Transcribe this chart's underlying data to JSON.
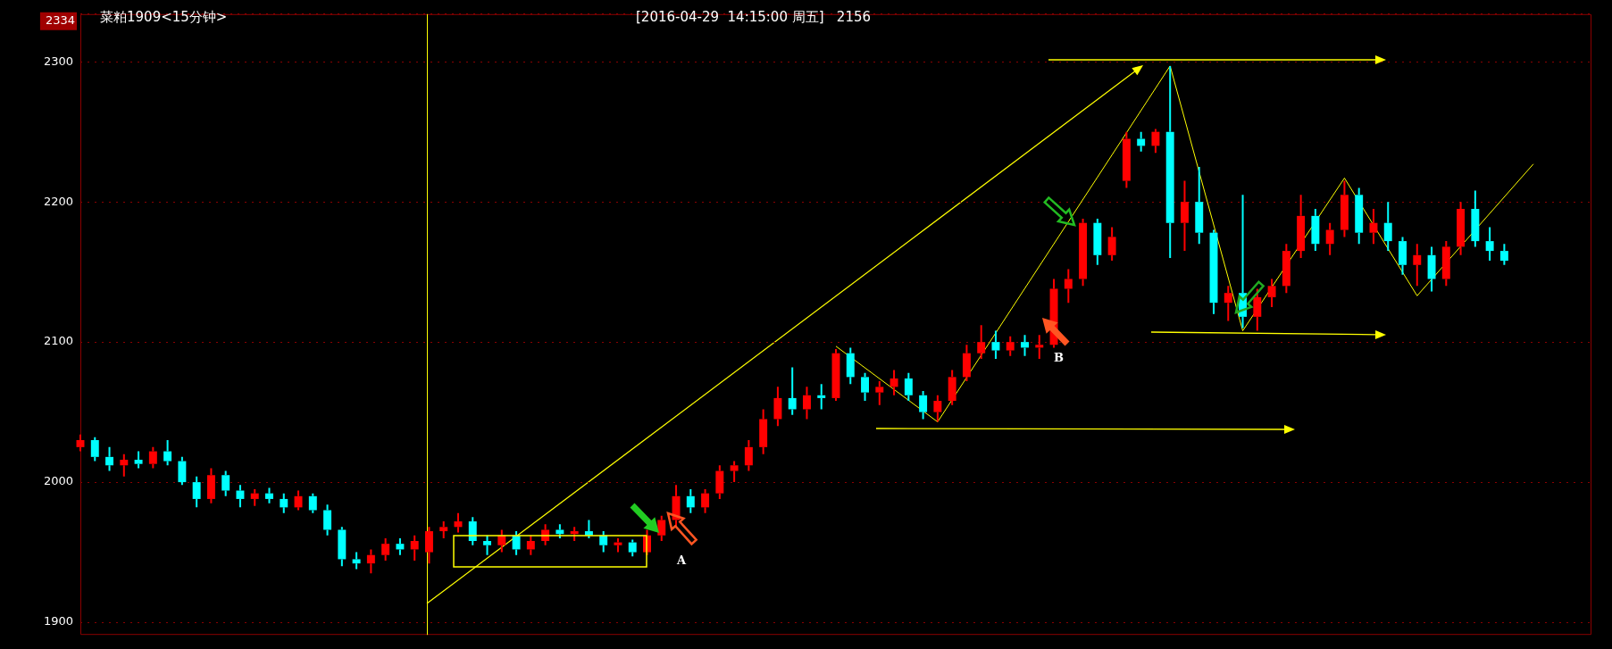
{
  "chart_data": {
    "type": "candlestick",
    "title": "菜粕1909<15分钟>",
    "subtitle": "[2016-04-29  14:15:00 周五]   2156",
    "annotations": [
      "A",
      "B"
    ],
    "categories": [
      null,
      null,
      null,
      null,
      null,
      null,
      null,
      null,
      null,
      null,
      null,
      null,
      null,
      null,
      null,
      null,
      null,
      null,
      null,
      null,
      null,
      null,
      null,
      null,
      null,
      null,
      null,
      null,
      null,
      null,
      null,
      null,
      null,
      null,
      null,
      null,
      null,
      null,
      null,
      null,
      null,
      null,
      null,
      null,
      null,
      null,
      null,
      null,
      null,
      null,
      null,
      null,
      null,
      null,
      null,
      null,
      null,
      null,
      null,
      null,
      null,
      null,
      null,
      null,
      null,
      null,
      null,
      null,
      null,
      null,
      null,
      null,
      null,
      null,
      null,
      null,
      null,
      null,
      null,
      null,
      null,
      null,
      null,
      null,
      null,
      null,
      null,
      null,
      null,
      null,
      null,
      null,
      null,
      null,
      null,
      null,
      null,
      null,
      null,
      null,
      null,
      null,
      null,
      null,
      null
    ],
    "ohlc": [
      [
        2025,
        2034,
        2022,
        2030
      ],
      [
        2030,
        2032,
        2015,
        2018
      ],
      [
        2018,
        2025,
        2008,
        2012
      ],
      [
        2012,
        2020,
        2004,
        2016
      ],
      [
        2016,
        2022,
        2010,
        2013
      ],
      [
        2013,
        2025,
        2010,
        2022
      ],
      [
        2022,
        2030,
        2012,
        2015
      ],
      [
        2015,
        2018,
        1998,
        2000
      ],
      [
        2000,
        2004,
        1982,
        1988
      ],
      [
        1988,
        2010,
        1985,
        2005
      ],
      [
        2005,
        2008,
        1990,
        1994
      ],
      [
        1994,
        1998,
        1982,
        1988
      ],
      [
        1988,
        1995,
        1983,
        1992
      ],
      [
        1992,
        1996,
        1985,
        1988
      ],
      [
        1988,
        1992,
        1978,
        1982
      ],
      [
        1982,
        1994,
        1980,
        1990
      ],
      [
        1990,
        1992,
        1978,
        1980
      ],
      [
        1980,
        1984,
        1962,
        1966
      ],
      [
        1966,
        1968,
        1940,
        1945
      ],
      [
        1945,
        1950,
        1938,
        1942
      ],
      [
        1942,
        1952,
        1935,
        1948
      ],
      [
        1948,
        1960,
        1944,
        1956
      ],
      [
        1956,
        1960,
        1948,
        1952
      ],
      [
        1952,
        1962,
        1944,
        1958
      ],
      [
        1950,
        1968,
        1942,
        1965
      ],
      [
        1965,
        1972,
        1960,
        1968
      ],
      [
        1968,
        1978,
        1964,
        1972
      ],
      [
        1972,
        1975,
        1955,
        1958
      ],
      [
        1958,
        1962,
        1948,
        1955
      ],
      [
        1955,
        1966,
        1950,
        1962
      ],
      [
        1962,
        1965,
        1948,
        1952
      ],
      [
        1952,
        1962,
        1948,
        1958
      ],
      [
        1958,
        1970,
        1955,
        1966
      ],
      [
        1966,
        1970,
        1960,
        1963
      ],
      [
        1963,
        1968,
        1958,
        1965
      ],
      [
        1965,
        1973,
        1960,
        1962
      ],
      [
        1962,
        1965,
        1950,
        1955
      ],
      [
        1955,
        1960,
        1950,
        1957
      ],
      [
        1957,
        1959,
        1947,
        1950
      ],
      [
        1950,
        1966,
        1948,
        1962
      ],
      [
        1962,
        1976,
        1958,
        1973
      ],
      [
        1973,
        1998,
        1968,
        1990
      ],
      [
        1990,
        1995,
        1978,
        1982
      ],
      [
        1982,
        1995,
        1978,
        1992
      ],
      [
        1992,
        2012,
        1988,
        2008
      ],
      [
        2008,
        2015,
        2000,
        2012
      ],
      [
        2012,
        2030,
        2008,
        2025
      ],
      [
        2025,
        2052,
        2020,
        2045
      ],
      [
        2045,
        2068,
        2040,
        2060
      ],
      [
        2060,
        2082,
        2048,
        2052
      ],
      [
        2052,
        2068,
        2045,
        2062
      ],
      [
        2062,
        2070,
        2052,
        2060
      ],
      [
        2060,
        2095,
        2058,
        2092
      ],
      [
        2092,
        2096,
        2070,
        2075
      ],
      [
        2075,
        2078,
        2058,
        2064
      ],
      [
        2064,
        2072,
        2055,
        2068
      ],
      [
        2068,
        2080,
        2062,
        2074
      ],
      [
        2074,
        2078,
        2058,
        2062
      ],
      [
        2062,
        2065,
        2045,
        2050
      ],
      [
        2050,
        2062,
        2043,
        2058
      ],
      [
        2058,
        2080,
        2055,
        2075
      ],
      [
        2075,
        2098,
        2072,
        2092
      ],
      [
        2092,
        2112,
        2088,
        2100
      ],
      [
        2100,
        2108,
        2088,
        2094
      ],
      [
        2094,
        2104,
        2090,
        2100
      ],
      [
        2100,
        2105,
        2090,
        2096
      ],
      [
        2096,
        2105,
        2088,
        2098
      ],
      [
        2098,
        2145,
        2096,
        2138
      ],
      [
        2138,
        2152,
        2128,
        2145
      ],
      [
        2145,
        2188,
        2140,
        2185
      ],
      [
        2185,
        2188,
        2155,
        2162
      ],
      [
        2162,
        2182,
        2158,
        2175
      ],
      [
        2215,
        2250,
        2210,
        2245
      ],
      [
        2245,
        2250,
        2236,
        2240
      ],
      [
        2240,
        2252,
        2235,
        2250
      ],
      [
        2250,
        2297,
        2160,
        2185
      ],
      [
        2185,
        2215,
        2165,
        2200
      ],
      [
        2200,
        2225,
        2170,
        2178
      ],
      [
        2178,
        2180,
        2120,
        2128
      ],
      [
        2128,
        2140,
        2115,
        2135
      ],
      [
        2135,
        2205,
        2110,
        2118
      ],
      [
        2118,
        2138,
        2108,
        2132
      ],
      [
        2132,
        2145,
        2125,
        2140
      ],
      [
        2140,
        2170,
        2135,
        2165
      ],
      [
        2165,
        2205,
        2160,
        2190
      ],
      [
        2190,
        2195,
        2165,
        2170
      ],
      [
        2170,
        2185,
        2162,
        2180
      ],
      [
        2180,
        2215,
        2175,
        2205
      ],
      [
        2205,
        2210,
        2170,
        2178
      ],
      [
        2178,
        2195,
        2170,
        2185
      ],
      [
        2185,
        2200,
        2165,
        2172
      ],
      [
        2172,
        2175,
        2148,
        2155
      ],
      [
        2155,
        2170,
        2140,
        2162
      ],
      [
        2162,
        2168,
        2136,
        2145
      ],
      [
        2145,
        2172,
        2140,
        2168
      ],
      [
        2168,
        2200,
        2162,
        2195
      ],
      [
        2195,
        2208,
        2168,
        2172
      ],
      [
        2172,
        2182,
        2158,
        2165
      ],
      [
        2165,
        2170,
        2155,
        2158
      ],
      null,
      null,
      null,
      null,
      null,
      null
    ],
    "colors": [
      "#ff0000",
      "#00ffff",
      "#00ffff",
      "#ff0000",
      "#00ffff",
      "#ff0000",
      "#00ffff",
      "#00ffff",
      "#00ffff",
      "#ff0000",
      "#00ffff",
      "#00ffff",
      "#ff0000",
      "#00ffff",
      "#00ffff",
      "#ff0000",
      "#00ffff",
      "#00ffff",
      "#00ffff",
      "#00ffff",
      "#ff0000",
      "#ff0000",
      "#00ffff",
      "#ff0000",
      "#ff0000",
      "#ff0000",
      "#ff0000",
      "#00ffff",
      "#00ffff",
      "#ff0000",
      "#00ffff",
      "#ff0000",
      "#ff0000",
      "#00ffff",
      "#ff0000",
      "#00ffff",
      "#00ffff",
      "#ff0000",
      "#00ffff",
      "#ff0000",
      "#ff0000",
      "#ff0000",
      "#00ffff",
      "#ff0000",
      "#ff0000",
      "#ff0000",
      "#ff0000",
      "#ff0000",
      "#ff0000",
      "#00ffff",
      "#ff0000",
      "#00ffff",
      "#ff0000",
      "#00ffff",
      "#00ffff",
      "#ff0000",
      "#ff0000",
      "#00ffff",
      "#00ffff",
      "#ff0000",
      "#ff0000",
      "#ff0000",
      "#ff0000",
      "#00ffff",
      "#ff0000",
      "#00ffff",
      "#ff0000",
      "#ff0000",
      "#ff0000",
      "#ff0000",
      "#00ffff",
      "#ff0000",
      "#ff0000",
      "#00ffff",
      "#ff0000",
      "#00ffff",
      "#ff0000",
      "#00ffff",
      "#00ffff",
      "#ff0000",
      "#00ffff",
      "#ff0000",
      "#ff0000",
      "#ff0000",
      "#ff0000",
      "#00ffff",
      "#ff0000",
      "#ff0000",
      "#00ffff",
      "#ff0000",
      "#00ffff",
      "#00ffff",
      "#ff0000",
      "#00ffff",
      "#ff0000",
      "#ff0000",
      "#00ffff",
      "#00ffff",
      "#00ffff",
      null,
      null,
      null,
      null,
      null,
      null
    ],
    "series": [
      {
        "type": "line",
        "color": "#ffff00",
        "values": [
          null,
          null,
          null,
          null,
          null,
          null,
          null,
          null,
          null,
          null,
          null,
          null,
          null,
          null,
          null,
          null,
          null,
          null,
          null,
          null,
          null,
          null,
          null,
          null,
          null,
          null,
          null,
          null,
          null,
          null,
          null,
          null,
          null,
          null,
          null,
          null,
          null,
          null,
          null,
          null,
          null,
          null,
          null,
          null,
          null,
          null,
          null,
          null,
          null,
          null,
          null,
          null,
          2097,
          null,
          null,
          null,
          null,
          null,
          null,
          2043,
          null,
          null,
          null,
          null,
          null,
          null,
          null,
          null,
          null,
          null,
          null,
          null,
          null,
          null,
          null,
          2297,
          null,
          null,
          null,
          null,
          2108,
          null,
          null,
          null,
          null,
          null,
          null,
          2217,
          null,
          null,
          null,
          null,
          2133,
          null,
          null,
          null,
          null,
          null,
          null,
          null,
          2227,
          null,
          null,
          null,
          null
        ]
      }
    ],
    "ylim": [
      1891,
      2334
    ],
    "yticks": [
      1900,
      2000,
      2100,
      2200,
      2300,
      2334
    ],
    "grid": "y",
    "legend": false
  }
}
